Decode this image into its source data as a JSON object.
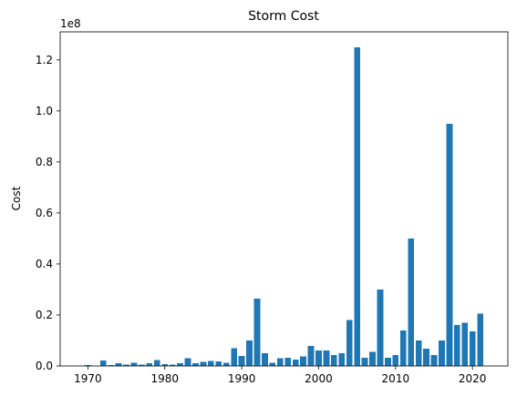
{
  "chart_data": {
    "type": "bar",
    "title": "Storm Cost",
    "xlabel": "",
    "ylabel": "Cost",
    "offset_text": "1e8",
    "grid": false,
    "legend": "none",
    "bar_color": "#1f77b4",
    "xlim": [
      1966.4,
      2024.6
    ],
    "ylim": [
      0,
      131000000
    ],
    "xticks": [
      1970,
      1980,
      1990,
      2000,
      2010,
      2020
    ],
    "xtick_labels": [
      "1970",
      "1980",
      "1990",
      "2000",
      "2010",
      "2020"
    ],
    "yticks": [
      0,
      20000000,
      40000000,
      60000000,
      80000000,
      100000000,
      120000000
    ],
    "ytick_labels": [
      "0.0",
      "0.2",
      "0.4",
      "0.6",
      "0.8",
      "1.0",
      "1.2"
    ],
    "x": [
      1970,
      1971,
      1972,
      1973,
      1974,
      1975,
      1976,
      1977,
      1978,
      1979,
      1980,
      1981,
      1982,
      1983,
      1984,
      1985,
      1986,
      1987,
      1988,
      1989,
      1990,
      1991,
      1992,
      1993,
      1994,
      1995,
      1996,
      1997,
      1998,
      1999,
      2000,
      2001,
      2002,
      2003,
      2004,
      2005,
      2006,
      2007,
      2008,
      2009,
      2010,
      2011,
      2012,
      2013,
      2014,
      2015,
      2016,
      2017,
      2018,
      2019,
      2020,
      2021
    ],
    "values": [
      300000,
      0,
      2200000,
      300000,
      1100000,
      500000,
      1300000,
      600000,
      1000000,
      2300000,
      700000,
      500000,
      1000000,
      3000000,
      1100000,
      1600000,
      2000000,
      1700000,
      1300000,
      7000000,
      4000000,
      10000000,
      26500000,
      5000000,
      1200000,
      3000000,
      3200000,
      2500000,
      3700000,
      7800000,
      6000000,
      6000000,
      4300000,
      5000000,
      18000000,
      125000000,
      3200000,
      5500000,
      30000000,
      3200000,
      4300000,
      14000000,
      50000000,
      10000000,
      6800000,
      4300000,
      10000000,
      95000000,
      16000000,
      17000000,
      13500000,
      20500000
    ]
  }
}
